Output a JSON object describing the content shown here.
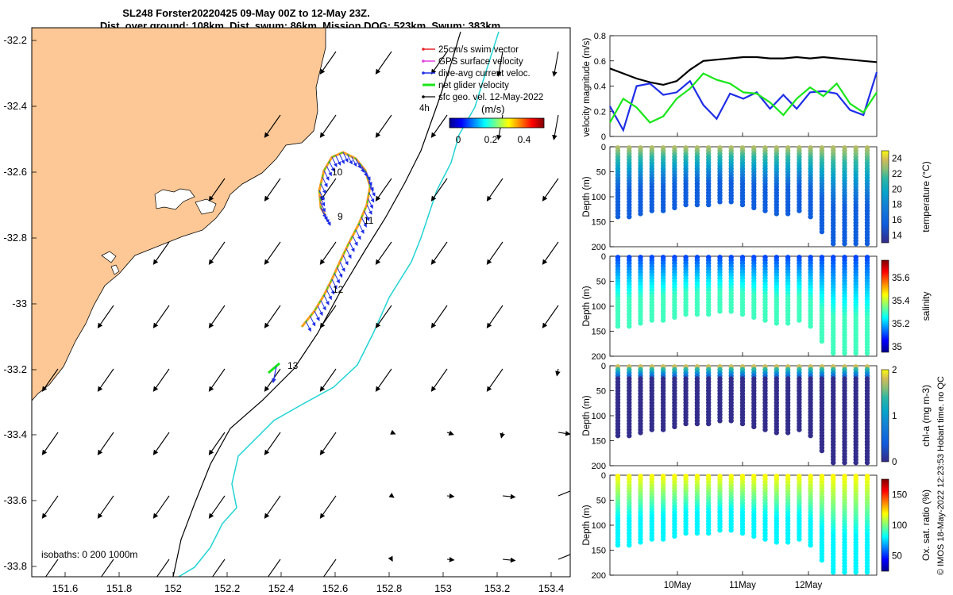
{
  "colors": {
    "land": "#fdc895",
    "sea": "#ffffff",
    "swim_vector": "#e6262a",
    "gps_velocity": "#e040e0",
    "dive_avg": "#1f2ee6",
    "net_glider": "#19e619",
    "sfc_geo": "#000000",
    "isobath_200": "#000000",
    "isobath_1000": "#22d3d3",
    "speed_mag": "#000000"
  },
  "map": {
    "title_line1": "SL248 Forster20220425 09-May 00Z to 12-May 23Z.",
    "title_line2": "Dist. over ground: 108km. Dist. swum: 86km. Mission DOG: 523km. Swum: 383km",
    "x_ticks": [
      "151.6",
      "151.8",
      "152",
      "152.2",
      "152.4",
      "152.6",
      "152.8",
      "153",
      "153.2",
      "153.4"
    ],
    "y_ticks": [
      "-32.2",
      "-32.4",
      "-32.6",
      "-32.8",
      "-33",
      "-33.2",
      "-33.4",
      "-33.6",
      "-33.8"
    ],
    "legend": [
      "25cm/s swim vector",
      "GPS surface velocity",
      "dive-avg current veloc.",
      "net glider velocity",
      "sfc geo. vel. 12-May-2022"
    ],
    "legend_4h": "4h",
    "colorbar_label": "(m/s)",
    "colorbar_ticks": [
      "0",
      "0.2",
      "0.4"
    ],
    "day_labels": [
      "9",
      "10",
      "11",
      "12",
      "13"
    ],
    "isobaths_note": "isobaths: 0   200  1000m"
  },
  "chart_data": [
    {
      "type": "line",
      "ylabel": "velocity magnitude (m/s)",
      "ylim": [
        0,
        0.8
      ],
      "y_ticks": [
        "0",
        "0.2",
        "0.4",
        "0.6",
        "0.8"
      ],
      "x": [
        0,
        0.2,
        0.4,
        0.6,
        0.8,
        1.0,
        1.2,
        1.4,
        1.6,
        1.8,
        2.0,
        2.2,
        2.4,
        2.6,
        2.8,
        3.0,
        3.2,
        3.4,
        3.6,
        3.8,
        4.0
      ],
      "series": [
        {
          "name": "sfc geo. vel.",
          "values": [
            0.54,
            0.5,
            0.46,
            0.43,
            0.41,
            0.44,
            0.53,
            0.6,
            0.61,
            0.62,
            0.63,
            0.63,
            0.62,
            0.62,
            0.63,
            0.62,
            0.63,
            0.62,
            0.61,
            0.6,
            0.59
          ]
        },
        {
          "name": "dive-avg current veloc.",
          "values": [
            0.24,
            0.05,
            0.4,
            0.42,
            0.33,
            0.35,
            0.44,
            0.25,
            0.14,
            0.34,
            0.3,
            0.35,
            0.22,
            0.33,
            0.22,
            0.35,
            0.36,
            0.34,
            0.21,
            0.17,
            0.51
          ]
        },
        {
          "name": "net glider velocity",
          "values": [
            0.11,
            0.3,
            0.23,
            0.11,
            0.16,
            0.3,
            0.38,
            0.5,
            0.45,
            0.42,
            0.35,
            0.34,
            0.27,
            0.17,
            0.3,
            0.39,
            0.32,
            0.42,
            0.26,
            0.19,
            0.35
          ]
        }
      ]
    },
    {
      "type": "scatter",
      "variable": "temperature (°C)",
      "ylabel": "Depth (m)",
      "ylim": [
        200,
        0
      ],
      "y_ticks": [
        "0",
        "50",
        "100",
        "150",
        "200"
      ],
      "colorbar_ticks": [
        "24",
        "22",
        "20",
        "18",
        "16",
        "14"
      ],
      "clim": [
        13,
        25
      ],
      "surface_value": 23.5,
      "deep_value": 15.5,
      "max_depths": [
        140,
        140,
        135,
        130,
        130,
        125,
        120,
        120,
        120,
        115,
        115,
        120,
        125,
        130,
        135,
        135,
        130,
        145,
        170,
        195,
        195,
        195,
        195
      ]
    },
    {
      "type": "scatter",
      "variable": "salinity",
      "ylabel": "Depth (m)",
      "ylim": [
        200,
        0
      ],
      "y_ticks": [
        "0",
        "50",
        "100",
        "150",
        "200"
      ],
      "colorbar_ticks": [
        "35.6",
        "35.4",
        "35.2",
        "35"
      ],
      "clim": [
        34.95,
        35.75
      ],
      "surface_value": 35.1,
      "deep_value": 35.3,
      "max_depths": [
        140,
        140,
        135,
        130,
        130,
        125,
        120,
        120,
        120,
        115,
        115,
        120,
        125,
        130,
        135,
        135,
        130,
        145,
        170,
        195,
        195,
        195,
        195
      ]
    },
    {
      "type": "scatter",
      "variable": "chl-a (mg m-3)",
      "ylabel": "Depth (m)",
      "ylim": [
        200,
        0
      ],
      "y_ticks": [
        "0",
        "50",
        "100",
        "150",
        "200"
      ],
      "colorbar_ticks": [
        "2",
        "1",
        "0"
      ],
      "clim": [
        0,
        2
      ],
      "surface_value": 1.9,
      "deep_value": 0.02,
      "max_depths": [
        140,
        140,
        135,
        130,
        130,
        125,
        120,
        120,
        120,
        115,
        115,
        120,
        125,
        130,
        135,
        135,
        130,
        145,
        170,
        195,
        195,
        195,
        195
      ]
    },
    {
      "type": "scatter",
      "variable": "Ox. sat. ratio (%)",
      "ylabel": "Depth (m)",
      "ylim": [
        200,
        0
      ],
      "y_ticks": [
        "0",
        "50",
        "100",
        "150",
        "200"
      ],
      "colorbar_ticks": [
        "150",
        "100",
        "50"
      ],
      "clim": [
        25,
        175
      ],
      "surface_value": 120,
      "deep_value": 80,
      "max_depths": [
        140,
        140,
        135,
        130,
        130,
        125,
        120,
        120,
        120,
        115,
        115,
        120,
        125,
        130,
        135,
        135,
        130,
        145,
        170,
        195,
        195,
        195,
        195
      ]
    }
  ],
  "time_axis": {
    "ticks": [
      "10May",
      "11May",
      "12May"
    ]
  },
  "credit": "© IMOS 18-May-2022 12:23:53 Hobart time. no QC"
}
